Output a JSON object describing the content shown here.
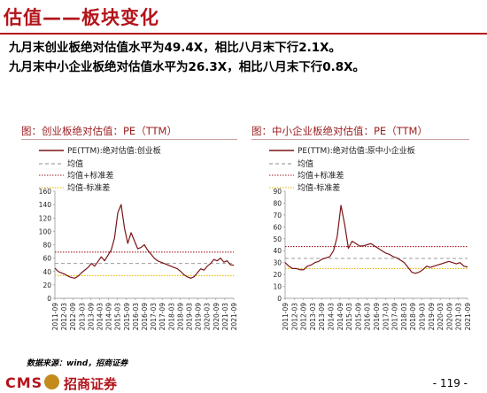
{
  "page": {
    "title": "估值——板块变化",
    "bullets": [
      "九月末创业板绝对估值水平为49.4X，相比八月末下行2.1X。",
      "九月末中小企业板绝对估值水平为26.3X，相比八月末下行0.8X。"
    ],
    "source": "数据来源：wind，招商证券",
    "footer": {
      "logo_text": "CMS",
      "logo_cn": "招商证券",
      "page_number": "- 119 -"
    }
  },
  "colors": {
    "accent": "#b3141b",
    "series": "#7b1416",
    "mean": "#8c8c8c",
    "plus_std": "#a01c20",
    "minus_std": "#e0b400"
  },
  "chart_data": [
    {
      "type": "line",
      "title": "图：创业板绝对估值：PE（TTM）",
      "ylim": [
        0,
        160
      ],
      "yticks": [
        0,
        20,
        40,
        60,
        80,
        100,
        120,
        140,
        160
      ],
      "xticks": [
        "2011-09",
        "2012-03",
        "2012-09",
        "2013-03",
        "2013-09",
        "2014-03",
        "2014-09",
        "2015-03",
        "2015-09",
        "2016-03",
        "2016-09",
        "2017-03",
        "2017-09",
        "2018-03",
        "2018-09",
        "2019-03",
        "2019-09",
        "2020-03",
        "2020-09",
        "2021-03",
        "2021-09"
      ],
      "series": [
        {
          "name": "PE(TTM):绝对估值:创业板",
          "style": "line",
          "values": [
            45,
            40,
            38,
            36,
            33,
            31,
            30,
            33,
            38,
            42,
            46,
            52,
            48,
            55,
            62,
            56,
            64,
            72,
            90,
            128,
            140,
            105,
            82,
            98,
            86,
            74,
            76,
            80,
            72,
            66,
            60,
            56,
            54,
            52,
            50,
            48,
            46,
            44,
            40,
            35,
            32,
            30,
            32,
            38,
            44,
            42,
            48,
            52,
            58,
            56,
            60,
            54,
            56,
            50,
            49.4
          ]
        }
      ],
      "reference_lines": [
        {
          "name": "均值",
          "value": 52,
          "style": "dashed"
        },
        {
          "name": "均值+标准差",
          "value": 69,
          "style": "dotted"
        },
        {
          "name": "均值-标准差",
          "value": 34,
          "style": "dotted"
        }
      ]
    },
    {
      "type": "line",
      "title": "图：中小企业板绝对估值：PE（TTM）",
      "ylim": [
        0,
        90
      ],
      "yticks": [
        0,
        10,
        20,
        30,
        40,
        50,
        60,
        70,
        80,
        90
      ],
      "xticks": [
        "2011-09",
        "2012-03",
        "2012-09",
        "2013-03",
        "2013-09",
        "2014-03",
        "2014-09",
        "2015-03",
        "2015-09",
        "2016-03",
        "2016-09",
        "2017-03",
        "2017-09",
        "2018-03",
        "2018-09",
        "2019-03",
        "2019-09",
        "2020-03",
        "2020-09",
        "2021-03",
        "2021-09"
      ],
      "series": [
        {
          "name": "PE(TTM):绝对估值:原中小企业板",
          "style": "line",
          "values": [
            30,
            27,
            25,
            25,
            24,
            24,
            27,
            28,
            30,
            31,
            33,
            34,
            35,
            40,
            52,
            78,
            62,
            42,
            48,
            46,
            44,
            44,
            45,
            46,
            44,
            42,
            40,
            38,
            37,
            35,
            34,
            32,
            30,
            26,
            22,
            21,
            22,
            24,
            27,
            26,
            27,
            28,
            29,
            30,
            31,
            30,
            29,
            30,
            27,
            26.3
          ]
        }
      ],
      "reference_lines": [
        {
          "name": "均值",
          "value": 33.5,
          "style": "dashed"
        },
        {
          "name": "均值+标准差",
          "value": 43.5,
          "style": "dotted"
        },
        {
          "name": "均值-标准差",
          "value": 25,
          "style": "dotted"
        }
      ]
    }
  ]
}
